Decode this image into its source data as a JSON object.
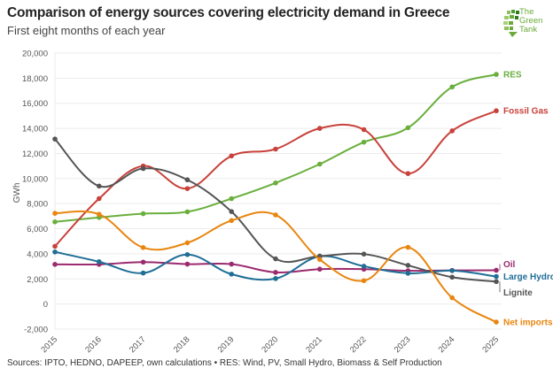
{
  "header": {
    "title": "Comparison of energy sources covering electricity demand in Greece",
    "subtitle": "First eight months of each year"
  },
  "logo": {
    "line1": "The",
    "line2": "Green",
    "line3": "Tank",
    "color": "#6aaa3a"
  },
  "footer": {
    "source": "Sources: IPTO, HEDNO, DAPEEP, own calculations • RES: Wind, PV, Small Hydro, Biomass & Self Production"
  },
  "chart_data": {
    "type": "line",
    "title": "Comparison of energy sources covering electricity demand in Greece",
    "subtitle": "First eight months of each year",
    "xlabel": "",
    "ylabel": "GWh",
    "ylim": [
      -2000,
      20000
    ],
    "yticks": [
      -2000,
      0,
      2000,
      4000,
      6000,
      8000,
      10000,
      12000,
      14000,
      16000,
      18000,
      20000
    ],
    "ytick_labels": [
      "-2,000",
      "0",
      "2,000",
      "4,000",
      "6,000",
      "8,000",
      "10,000",
      "12,000",
      "14,000",
      "16,000",
      "18,000",
      "20,000"
    ],
    "x": [
      "2015",
      "2016",
      "2017",
      "2018",
      "2019",
      "2020",
      "2021",
      "2022",
      "2023",
      "2024",
      "2025"
    ],
    "grid": true,
    "legend": "end-of-line labels (right)",
    "series": [
      {
        "name": "RES",
        "color": "#6aaf3d",
        "values": [
          6550,
          6900,
          7200,
          7350,
          8400,
          9650,
          11150,
          12900,
          14050,
          17300,
          18300
        ]
      },
      {
        "name": "Fossil Gas",
        "color": "#c8413a",
        "values": [
          4600,
          8400,
          11000,
          9200,
          11800,
          12350,
          14000,
          13900,
          10400,
          13800,
          15400
        ]
      },
      {
        "name": "Oil",
        "color": "#9b2a6e",
        "values": [
          3160,
          3160,
          3340,
          3180,
          3180,
          2520,
          2780,
          2780,
          2650,
          2680,
          2690
        ]
      },
      {
        "name": "Large Hydro",
        "color": "#1f6e96",
        "values": [
          4150,
          3370,
          2470,
          3940,
          2380,
          2030,
          3790,
          3010,
          2450,
          2660,
          2190
        ]
      },
      {
        "name": "Lignite",
        "color": "#555555",
        "values": [
          13150,
          9400,
          10800,
          9900,
          7370,
          3600,
          3820,
          3980,
          3080,
          2140,
          1790
        ]
      },
      {
        "name": "Net imports",
        "color": "#e8860f",
        "values": [
          7230,
          7150,
          4500,
          4880,
          6650,
          7100,
          3550,
          1860,
          4520,
          500,
          -1440
        ]
      }
    ]
  }
}
